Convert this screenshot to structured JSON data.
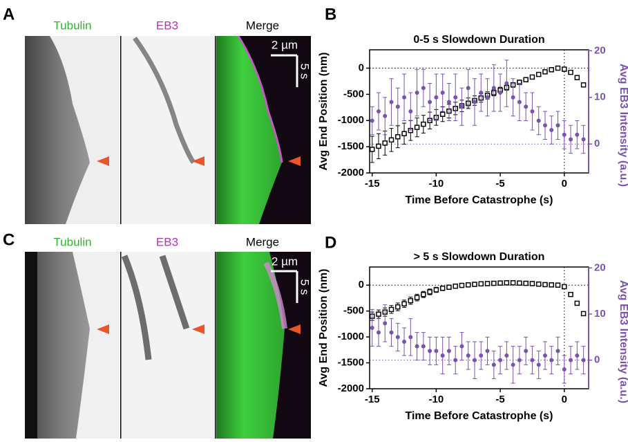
{
  "panels": {
    "labels": [
      "A",
      "B",
      "C",
      "D"
    ],
    "kymographs": [
      {
        "channels": [
          "Tubulin",
          "EB3",
          "Merge"
        ],
        "scale_x": "2 µm",
        "scale_t": "5 s"
      },
      {
        "channels": [
          "Tubulin",
          "EB3",
          "Merge"
        ],
        "scale_x": "2 µm",
        "scale_t": "5 s"
      }
    ]
  },
  "chart_data": [
    {
      "type": "scatter",
      "title": "0-5 s Slowdown Duration",
      "x_label": "Time Before Catastrophe (s)",
      "y_label": "Avg End Position (nm)",
      "y2_label": "Avg EB3 Intensity (a.u.)",
      "x": [
        -15,
        -14.5,
        -14,
        -13.5,
        -13,
        -12.5,
        -12,
        -11.5,
        -11,
        -10.5,
        -10,
        -9.5,
        -9,
        -8.5,
        -8,
        -7.5,
        -7,
        -6.5,
        -6,
        -5.5,
        -5,
        -4.5,
        -4,
        -3.5,
        -3,
        -2.5,
        -2,
        -1.5,
        -1,
        -0.5,
        0,
        0.5,
        1,
        1.5
      ],
      "xlim": [
        -15.2,
        1.9
      ],
      "xticks": [
        -15,
        -10,
        -5,
        0
      ],
      "ylim": [
        -2000,
        350
      ],
      "yticks": [
        -2000,
        -1500,
        -1000,
        -500,
        0
      ],
      "y2lim": [
        -6.2,
        20.2
      ],
      "y2ticks": [
        0,
        10,
        20
      ],
      "reference_lines": {
        "x": 0,
        "y": 0,
        "y2": 0
      },
      "series": [
        {
          "color": "#000000",
          "marker": "square",
          "values": [
            -1550,
            -1490,
            -1430,
            -1370,
            -1310,
            -1250,
            -1190,
            -1130,
            -1070,
            -1000,
            -940,
            -880,
            -820,
            -770,
            -720,
            -670,
            -620,
            -570,
            -520,
            -470,
            -420,
            -370,
            -320,
            -270,
            -220,
            -170,
            -120,
            -70,
            -30,
            0,
            -20,
            -80,
            -180,
            -320
          ],
          "errors": [
            250,
            240,
            230,
            220,
            210,
            200,
            190,
            180,
            170,
            160,
            150,
            140,
            130,
            120,
            110,
            100,
            90,
            80,
            70,
            60,
            55,
            50,
            45,
            40,
            35,
            30,
            25,
            20,
            15,
            10,
            15,
            20,
            25,
            30
          ]
        },
        {
          "color": "#7b52ae",
          "marker": "circle",
          "axis": "y2",
          "values": [
            5,
            7,
            6,
            9,
            8,
            10,
            7,
            11,
            12,
            9,
            10,
            11,
            9,
            10,
            8,
            12,
            9,
            11,
            10,
            12,
            11,
            13,
            10,
            9,
            8,
            7,
            5,
            4,
            3,
            4,
            2,
            1,
            2,
            1
          ],
          "errors": [
            3,
            4,
            4,
            5,
            4,
            5,
            4,
            5,
            4,
            4,
            5,
            4,
            4,
            5,
            4,
            4,
            5,
            4,
            4,
            5,
            4,
            5,
            4,
            4,
            3,
            4,
            3,
            3,
            3,
            3,
            3,
            3,
            3,
            3
          ]
        }
      ]
    },
    {
      "type": "scatter",
      "title": "> 5 s Slowdown Duration",
      "x_label": "Time Before Catastrophe (s)",
      "y_label": "Avg End Position (nm)",
      "y2_label": "Avg EB3 Intensity (a.u.)",
      "x": [
        -15,
        -14.5,
        -14,
        -13.5,
        -13,
        -12.5,
        -12,
        -11.5,
        -11,
        -10.5,
        -10,
        -9.5,
        -9,
        -8.5,
        -8,
        -7.5,
        -7,
        -6.5,
        -6,
        -5.5,
        -5,
        -4.5,
        -4,
        -3.5,
        -3,
        -2.5,
        -2,
        -1.5,
        -1,
        -0.5,
        0,
        0.5,
        1,
        1.5
      ],
      "xlim": [
        -15.2,
        1.9
      ],
      "xticks": [
        -15,
        -10,
        -5,
        0
      ],
      "ylim": [
        -2000,
        350
      ],
      "yticks": [
        -2000,
        -1500,
        -1000,
        -500,
        0
      ],
      "y2lim": [
        -6.2,
        20.2
      ],
      "y2ticks": [
        0,
        10,
        20
      ],
      "reference_lines": {
        "x": 0,
        "y": 0,
        "y2": 0
      },
      "series": [
        {
          "color": "#000000",
          "marker": "square",
          "values": [
            -600,
            -560,
            -520,
            -470,
            -420,
            -360,
            -300,
            -240,
            -180,
            -130,
            -90,
            -60,
            -40,
            -20,
            -5,
            5,
            15,
            25,
            30,
            35,
            40,
            45,
            45,
            40,
            35,
            30,
            20,
            10,
            5,
            0,
            -30,
            -180,
            -350,
            -550
          ],
          "errors": [
            80,
            80,
            80,
            75,
            75,
            70,
            70,
            65,
            60,
            55,
            50,
            45,
            40,
            35,
            30,
            30,
            25,
            25,
            20,
            20,
            20,
            20,
            20,
            20,
            15,
            15,
            15,
            15,
            10,
            10,
            15,
            20,
            25,
            30
          ]
        },
        {
          "color": "#7b52ae",
          "marker": "circle",
          "axis": "y2",
          "values": [
            7,
            6,
            8,
            6,
            5,
            4,
            5,
            3,
            3,
            2,
            2,
            1,
            2,
            0,
            3,
            1,
            0,
            1,
            2,
            -1,
            0,
            1,
            -1,
            0,
            2,
            0,
            -1,
            1,
            0,
            2,
            -2,
            0,
            1,
            0
          ],
          "errors": [
            4,
            3,
            4,
            3,
            3,
            3,
            4,
            3,
            3,
            3,
            3,
            4,
            3,
            3,
            3,
            3,
            4,
            3,
            3,
            3,
            3,
            3,
            4,
            3,
            3,
            3,
            3,
            3,
            3,
            3,
            3,
            3,
            3,
            3
          ]
        }
      ]
    }
  ]
}
